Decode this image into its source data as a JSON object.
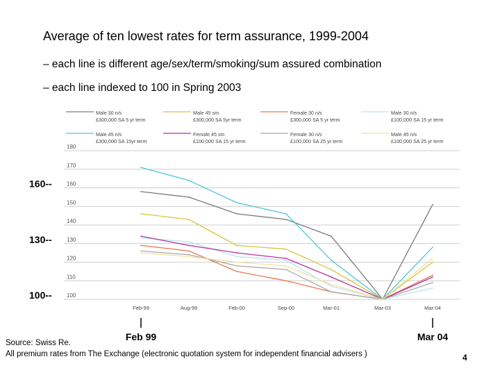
{
  "slide": {
    "title": "Average of ten lowest rates for term assurance, 1999-2004",
    "subtitle1": "– each line is different age/sex/term/smoking/sum assured combination",
    "subtitle2": "– each line indexed to 100 in Spring 2003",
    "source": "Source: Swiss Re.",
    "footnote": "All premium rates from The Exchange (electronic quotation system for independent financial advisers )",
    "page_number": "4"
  },
  "chart_data": {
    "type": "line",
    "categories": [
      "Feb-99",
      "Aug-99",
      "Feb-00",
      "Sep-00",
      "Mar-01",
      "Mar-03",
      "Mar-04"
    ],
    "y_ticks": [
      100,
      110,
      120,
      130,
      140,
      150,
      160,
      170,
      180
    ],
    "ylim": [
      100,
      180
    ],
    "big_y_labels": [
      {
        "value": 160,
        "text": "160--"
      },
      {
        "value": 130,
        "text": "130--"
      },
      {
        "value": 100,
        "text": "100--"
      }
    ],
    "big_x_labels": [
      {
        "category": "Feb-99",
        "text": "Feb 99"
      },
      {
        "category": "Mar-04",
        "text": "Mar 04"
      }
    ],
    "grid": true,
    "legend_position": "top",
    "series": [
      {
        "name": "Male 30 n/s\n£300,000 SA 5 yr term",
        "color": "#7a7a7a",
        "values": [
          158,
          155,
          146,
          143,
          134,
          100,
          151
        ]
      },
      {
        "name": "Male 45 sm\n£300,000 SA 5yr term",
        "color": "#d8c43c",
        "values": [
          146,
          143,
          129,
          127,
          116,
          100,
          120
        ]
      },
      {
        "name": "Female 30 n/s\n£300,000 SA 5 yr term",
        "color": "#e57a55",
        "values": [
          129,
          126,
          115,
          110,
          104,
          100,
          113
        ]
      },
      {
        "name": "Male 30 n/s\n£100,000 SA 15 yr term",
        "color": "#b9e4ec",
        "values": [
          133,
          131,
          123,
          121,
          107,
          100,
          106
        ]
      },
      {
        "name": "Male 45 n/s\n£300,000 SA 15yr term",
        "color": "#4dc5da",
        "values": [
          171,
          164,
          152,
          146,
          121,
          100,
          128
        ]
      },
      {
        "name": "Female 45 sm\n£100,000 SA 15 yr term",
        "color": "#b52fa0",
        "values": [
          134,
          129,
          125,
          122,
          112,
          100,
          112
        ]
      },
      {
        "name": "Female 30 n/s\n£100,000 SA 25 yr term",
        "color": "#a8a8a8",
        "values": [
          126,
          124,
          118,
          116,
          104,
          100,
          109
        ]
      },
      {
        "name": "Male 45 n/s\n£100,000 SA 25 yr term",
        "color": "#f0e39a",
        "values": [
          125,
          123,
          120,
          118,
          108,
          100,
          122
        ]
      }
    ]
  }
}
